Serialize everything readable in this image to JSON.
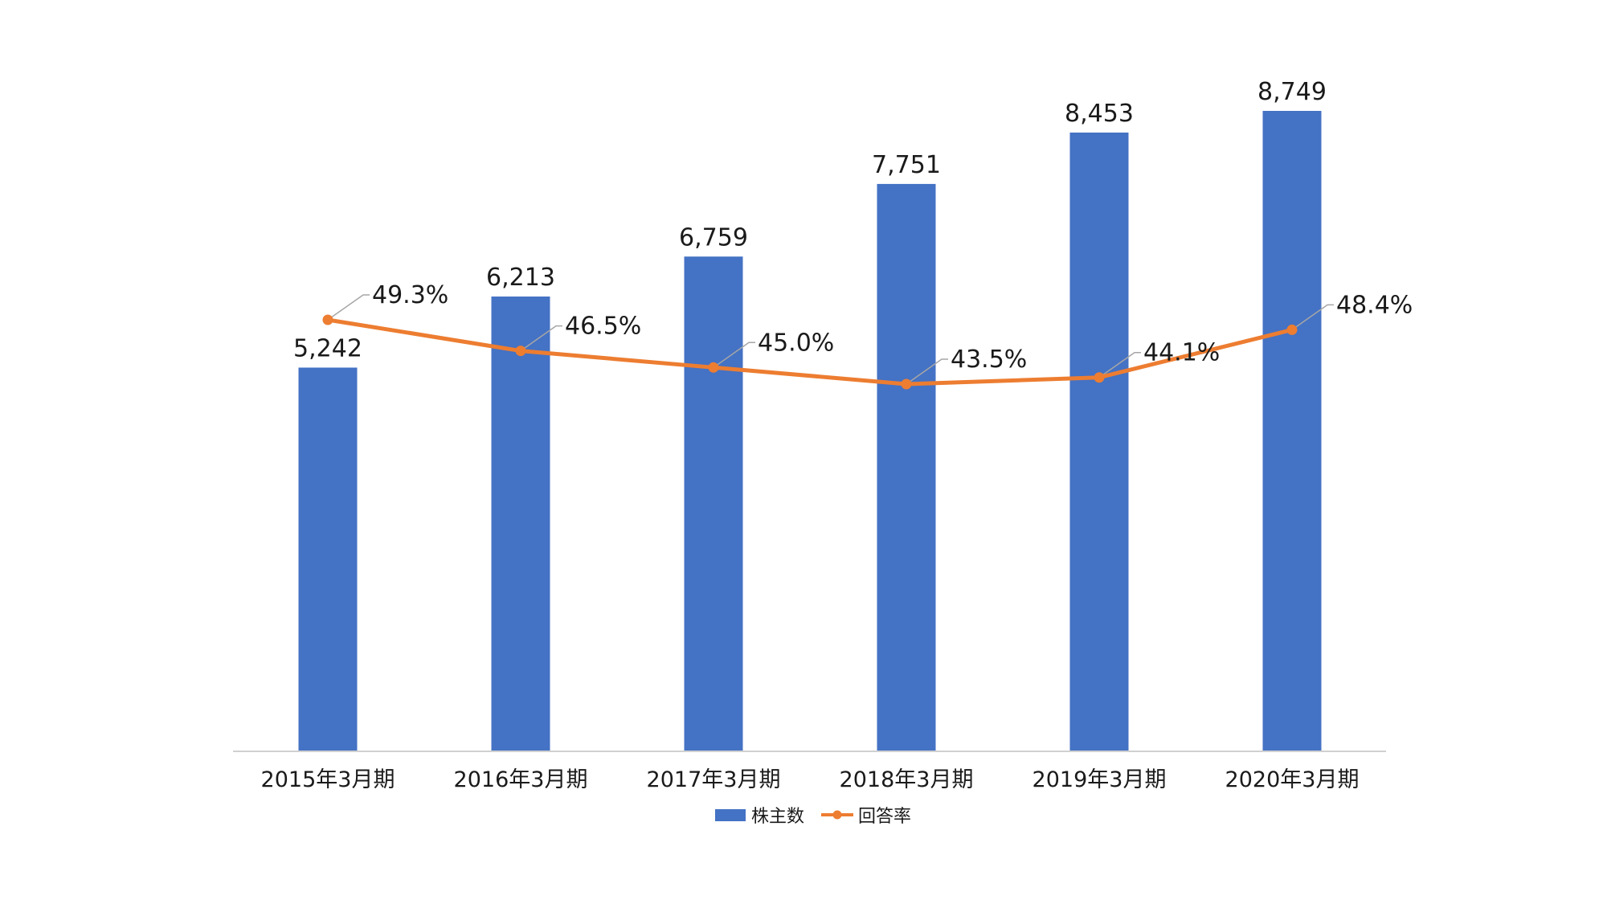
{
  "chart_data": {
    "type": "bar+line",
    "categories": [
      "2015年3月期",
      "2016年3月期",
      "2017年3月期",
      "2018年3月期",
      "2019年3月期",
      "2020年3月期"
    ],
    "series": [
      {
        "name": "株主数",
        "type": "bar",
        "axis": "left",
        "values": [
          5242,
          6213,
          6759,
          7751,
          8453,
          8749
        ],
        "labels": [
          "5,242",
          "6,213",
          "6,759",
          "7,751",
          "8,453",
          "8,749"
        ],
        "color": "#4472c4"
      },
      {
        "name": "回答率",
        "type": "line",
        "axis": "right",
        "values": [
          49.3,
          46.5,
          45.0,
          43.5,
          44.1,
          48.4
        ],
        "labels": [
          "49.3%",
          "46.5%",
          "45.0%",
          "43.5%",
          "44.1%",
          "48.4%"
        ],
        "color": "#ed7d31"
      }
    ],
    "ylim_left": [
      0,
      8749
    ],
    "ylim_right": [
      0,
      100
    ],
    "grid": false,
    "legend": "bottom"
  }
}
